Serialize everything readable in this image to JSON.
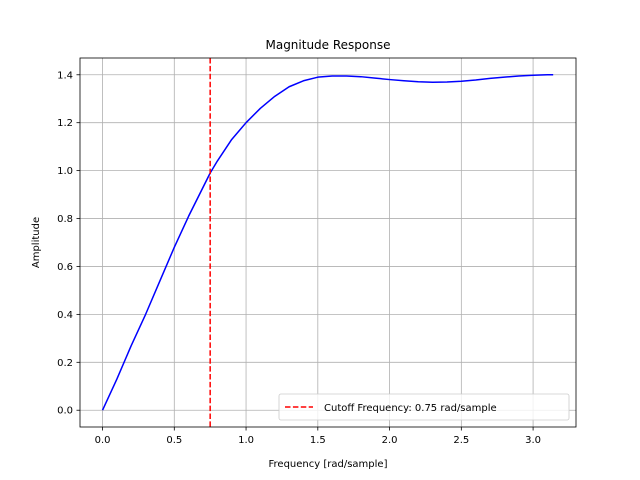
{
  "chart_data": {
    "type": "line",
    "title": "Magnitude Response",
    "xlabel": "Frequency [rad/sample]",
    "ylabel": "Amplitude",
    "xlim": [
      -0.157,
      3.299
    ],
    "ylim": [
      -0.07,
      1.47
    ],
    "xticks": [
      0.0,
      0.5,
      1.0,
      1.5,
      2.0,
      2.5,
      3.0
    ],
    "yticks": [
      0.0,
      0.2,
      0.4,
      0.6,
      0.8,
      1.0,
      1.2,
      1.4
    ],
    "xtick_labels": [
      "0.0",
      "0.5",
      "1.0",
      "1.5",
      "2.0",
      "2.5",
      "3.0"
    ],
    "ytick_labels": [
      "0.0",
      "0.2",
      "0.4",
      "0.6",
      "0.8",
      "1.0",
      "1.2",
      "1.4"
    ],
    "grid": true,
    "legend_position": "lower-right",
    "series": [
      {
        "color": "#0000ff",
        "x": [
          0.0,
          0.1,
          0.2,
          0.3,
          0.4,
          0.5,
          0.6,
          0.7,
          0.75,
          0.8,
          0.9,
          1.0,
          1.1,
          1.2,
          1.3,
          1.4,
          1.5,
          1.6,
          1.7,
          1.8,
          1.9,
          2.0,
          2.1,
          2.2,
          2.3,
          2.4,
          2.5,
          2.6,
          2.7,
          2.8,
          2.9,
          3.0,
          3.1,
          3.14
        ],
        "y": [
          0.0,
          0.13,
          0.27,
          0.4,
          0.54,
          0.68,
          0.81,
          0.93,
          0.99,
          1.04,
          1.13,
          1.2,
          1.26,
          1.31,
          1.35,
          1.375,
          1.39,
          1.395,
          1.395,
          1.392,
          1.386,
          1.38,
          1.375,
          1.371,
          1.369,
          1.37,
          1.373,
          1.378,
          1.385,
          1.39,
          1.395,
          1.398,
          1.4,
          1.4
        ]
      }
    ],
    "vlines": [
      {
        "x": 0.75,
        "color": "#ff0000",
        "style": "dashed",
        "name": "Cutoff Frequency: 0.75 rad/sample"
      }
    ]
  }
}
